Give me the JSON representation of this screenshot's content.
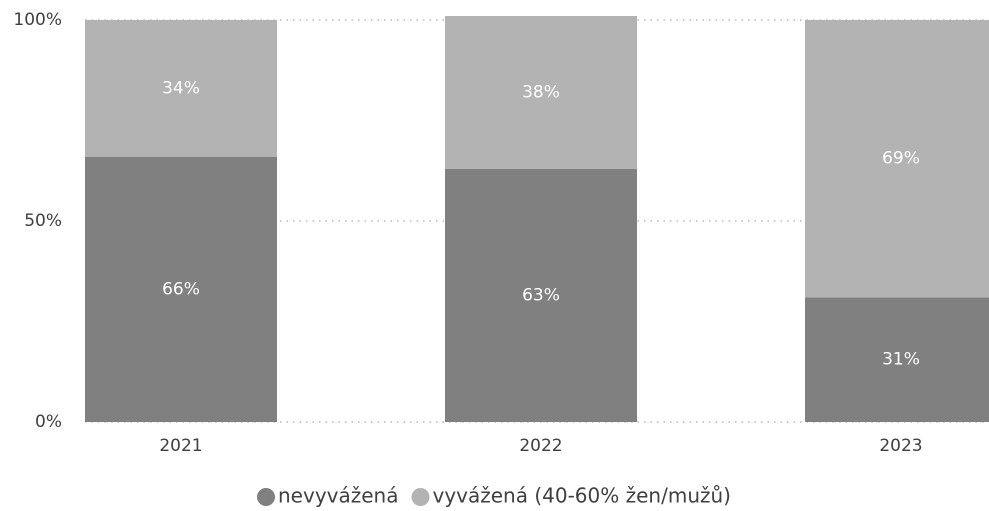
{
  "chart_data": {
    "type": "stacked_bar",
    "categories": [
      "2021",
      "2022",
      "2023"
    ],
    "series": [
      {
        "name": "nevyvážená",
        "color": "#808080",
        "values": [
          66,
          63,
          31
        ],
        "value_labels": [
          "66%",
          "63%",
          "31%"
        ]
      },
      {
        "name": "vyvážená (40-60% žen/mužů)",
        "color": "#b3b3b3",
        "values": [
          34,
          38,
          69
        ],
        "value_labels": [
          "34%",
          "38%",
          "69%"
        ]
      }
    ],
    "ylim": [
      0,
      100
    ],
    "yticks": [
      {
        "value": 0,
        "label": "0%"
      },
      {
        "value": 50,
        "label": "50%"
      },
      {
        "value": 100,
        "label": "100%"
      }
    ],
    "grid": true,
    "legend": "bottom"
  }
}
